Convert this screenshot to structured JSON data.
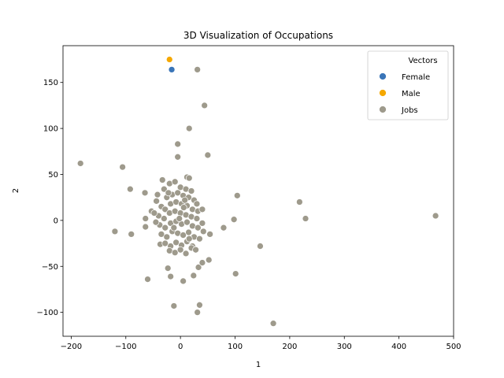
{
  "chart_data": {
    "type": "scatter",
    "title": "3D Visualization of Occupations",
    "xlabel": "1",
    "ylabel": "2",
    "xlim": [
      -215,
      500
    ],
    "ylim": [
      -126,
      190
    ],
    "xticks": [
      -200,
      -100,
      0,
      100,
      200,
      300,
      400,
      500
    ],
    "yticks": [
      -100,
      -50,
      0,
      50,
      100,
      150
    ],
    "grid": false,
    "legend": {
      "title": "Vectors",
      "placement": "top-right"
    },
    "series": [
      {
        "name": "Female",
        "color": "#3a75b8",
        "points": [
          [
            -16,
            164
          ]
        ]
      },
      {
        "name": "Male",
        "color": "#f5a800",
        "points": [
          [
            -20,
            175
          ]
        ]
      },
      {
        "name": "Jobs",
        "color": "#9e9a8c",
        "points": [
          [
            31,
            164
          ],
          [
            44,
            125
          ],
          [
            16,
            100
          ],
          [
            50,
            71
          ],
          [
            -5,
            83
          ],
          [
            -5,
            69
          ],
          [
            -183,
            62
          ],
          [
            -106,
            58
          ],
          [
            -92,
            34
          ],
          [
            -65,
            30
          ],
          [
            12,
            47
          ],
          [
            16,
            46
          ],
          [
            -33,
            44
          ],
          [
            104,
            27
          ],
          [
            218,
            20
          ],
          [
            229,
            2
          ],
          [
            467,
            5
          ],
          [
            98,
            1
          ],
          [
            79,
            -8
          ],
          [
            146,
            -28
          ],
          [
            54,
            -15
          ],
          [
            40,
            -3
          ],
          [
            -120,
            -12
          ],
          [
            -90,
            -15
          ],
          [
            -64,
            -7
          ],
          [
            -64,
            2
          ],
          [
            -53,
            10
          ],
          [
            -44,
            21
          ],
          [
            -37,
            -26
          ],
          [
            -23,
            -52
          ],
          [
            -18,
            -61
          ],
          [
            -60,
            -64
          ],
          [
            5,
            -66
          ],
          [
            24,
            -60
          ],
          [
            33,
            -51
          ],
          [
            40,
            -46
          ],
          [
            52,
            -43
          ],
          [
            101,
            -58
          ],
          [
            -12,
            -93
          ],
          [
            35,
            -92
          ],
          [
            31,
            -100
          ],
          [
            170,
            -112
          ],
          [
            -30,
            34
          ],
          [
            -20,
            40
          ],
          [
            -10,
            42
          ],
          [
            0,
            36
          ],
          [
            10,
            34
          ],
          [
            20,
            32
          ],
          [
            -25,
            25
          ],
          [
            -15,
            28
          ],
          [
            -5,
            30
          ],
          [
            5,
            27
          ],
          [
            15,
            25
          ],
          [
            25,
            22
          ],
          [
            30,
            18
          ],
          [
            -35,
            15
          ],
          [
            -28,
            12
          ],
          [
            -18,
            18
          ],
          [
            -8,
            20
          ],
          [
            2,
            18
          ],
          [
            12,
            16
          ],
          [
            22,
            12
          ],
          [
            32,
            10
          ],
          [
            -40,
            5
          ],
          [
            -30,
            2
          ],
          [
            -20,
            8
          ],
          [
            -10,
            10
          ],
          [
            0,
            8
          ],
          [
            10,
            6
          ],
          [
            20,
            4
          ],
          [
            30,
            2
          ],
          [
            -38,
            -5
          ],
          [
            -28,
            -8
          ],
          [
            -18,
            -3
          ],
          [
            -8,
            -1
          ],
          [
            2,
            -4
          ],
          [
            12,
            -2
          ],
          [
            22,
            -6
          ],
          [
            32,
            -8
          ],
          [
            -35,
            -15
          ],
          [
            -25,
            -18
          ],
          [
            -15,
            -12
          ],
          [
            -5,
            -14
          ],
          [
            5,
            -16
          ],
          [
            15,
            -13
          ],
          [
            25,
            -18
          ],
          [
            35,
            -20
          ],
          [
            -28,
            -25
          ],
          [
            -18,
            -28
          ],
          [
            -8,
            -24
          ],
          [
            2,
            -27
          ],
          [
            12,
            -23
          ],
          [
            22,
            -28
          ],
          [
            -20,
            -33
          ],
          [
            -10,
            -35
          ],
          [
            0,
            -32
          ],
          [
            10,
            -36
          ],
          [
            20,
            -30
          ],
          [
            -45,
            -2
          ],
          [
            -48,
            8
          ],
          [
            -42,
            28
          ],
          [
            40,
            12
          ],
          [
            42,
            -12
          ],
          [
            -2,
            2
          ],
          [
            6,
            14
          ],
          [
            -12,
            -8
          ],
          [
            16,
            -20
          ],
          [
            -22,
            30
          ],
          [
            28,
            -32
          ],
          [
            8,
            22
          ]
        ]
      }
    ]
  }
}
